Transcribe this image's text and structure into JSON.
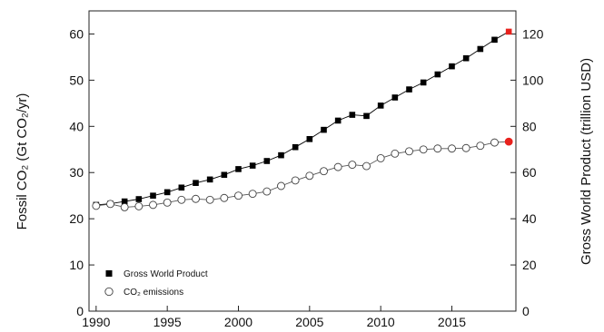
{
  "chart_data": {
    "type": "line",
    "x": [
      1990,
      1991,
      1992,
      1993,
      1994,
      1995,
      1996,
      1997,
      1998,
      1999,
      2000,
      2001,
      2002,
      2003,
      2004,
      2005,
      2006,
      2007,
      2008,
      2009,
      2010,
      2011,
      2012,
      2013,
      2014,
      2015,
      2016,
      2017,
      2018,
      2019
    ],
    "series": [
      {
        "name": "Gross World Product",
        "axis": "right",
        "marker": "filled-square",
        "color": "#000000",
        "values": [
          46,
          46.5,
          47.5,
          48.5,
          50,
          51.5,
          53.5,
          55.5,
          57,
          59,
          61.5,
          63,
          65,
          67.5,
          71,
          74.5,
          78.5,
          82.5,
          85,
          84.5,
          89,
          92.5,
          96,
          99,
          102.5,
          106,
          109.5,
          113.5,
          117.5,
          121
        ],
        "last_point_color": "#e8211c"
      },
      {
        "name": "CO₂ emissions",
        "axis": "left",
        "marker": "open-circle",
        "color": "#555555",
        "values": [
          22.8,
          23.2,
          22.5,
          22.7,
          23.0,
          23.5,
          24.1,
          24.3,
          24.1,
          24.5,
          25.0,
          25.4,
          25.9,
          27.1,
          28.3,
          29.3,
          30.3,
          31.2,
          31.7,
          31.4,
          33.1,
          34.1,
          34.6,
          35.0,
          35.2,
          35.2,
          35.3,
          35.8,
          36.5,
          36.7
        ],
        "last_point_color": "#e8211c"
      }
    ],
    "xlim": [
      1989.5,
      2019.5
    ],
    "xticks": [
      "1990",
      "1995",
      "2000",
      "2005",
      "2010",
      "2015"
    ],
    "ylim_left": [
      0,
      65
    ],
    "yticks_left": [
      "0",
      "10",
      "20",
      "30",
      "40",
      "50",
      "60"
    ],
    "ylim_right": [
      0,
      130
    ],
    "yticks_right": [
      "0",
      "20",
      "40",
      "60",
      "80",
      "100",
      "120"
    ],
    "ylabel_left": "Fossil CO₂ (Gt CO₂/yr)",
    "ylabel_right": "Gross World Product (trillion USD)",
    "legend_position": "bottom-left",
    "grid": false
  }
}
